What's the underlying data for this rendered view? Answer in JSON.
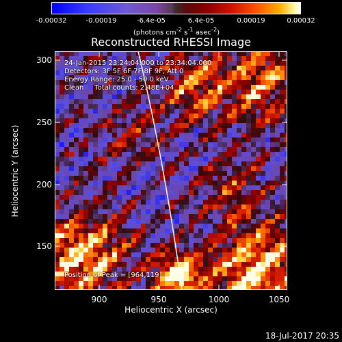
{
  "colorbar": {
    "ticks": [
      "-0.00032",
      "-0.00019",
      "-6.4e-05",
      "6.4e-05",
      "0.00019",
      "0.00032"
    ],
    "units_prefix": "(photons cm",
    "units_exp1": "-2",
    "units_mid": " s",
    "units_exp2": "-1",
    "units_mid2": " asec",
    "units_exp3": "-2",
    "units_suffix": ")"
  },
  "title": "Reconstructed RHESSI Image",
  "annotations": {
    "time_range": "24-Jan-2015 23:24:04.000 to 23:34:04.000",
    "detectors": "Detectors: 3F 5F 6F 7F 8F 9F, Att 0",
    "energy": "Energy Range: 25.0 - 50.0 keV",
    "clean": "Clean     Total counts: 2.48E+04",
    "peak": "Position of Peak = [964,119]"
  },
  "axes": {
    "xlabel": "Heliocentric X (arcsec)",
    "ylabel": "Heliocentric Y (arcsec)",
    "xticks": [
      "900",
      "950",
      "1000",
      "1050"
    ],
    "yticks": [
      "300",
      "250",
      "200",
      "150"
    ],
    "xlim": [
      864,
      1052
    ],
    "ylim": [
      113,
      306
    ]
  },
  "timestamp": "18-Jul-2017 20:35"
}
